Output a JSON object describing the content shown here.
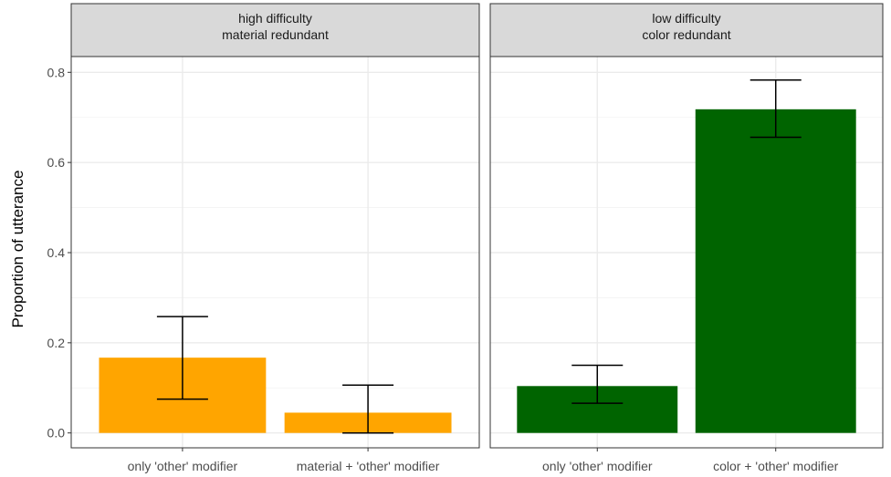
{
  "chart_data": {
    "type": "bar",
    "ylabel": "Proportion of utterance",
    "xlabel": "",
    "ylim": [
      -0.033,
      0.835
    ],
    "y_ticks": [
      "0.0",
      "0.2",
      "0.4",
      "0.6",
      "0.8"
    ],
    "grid": true,
    "legend": "none",
    "panels": [
      {
        "strip": [
          "high difficulty",
          "material redundant"
        ],
        "categories": [
          "only 'other' modifier",
          "material + 'other' modifier"
        ],
        "values": [
          0.167,
          0.045
        ],
        "error_low": [
          0.075,
          0.0
        ],
        "error_high": [
          0.258,
          0.106
        ],
        "color": "#FFA500"
      },
      {
        "strip": [
          "low difficulty",
          "color redundant"
        ],
        "categories": [
          "only 'other' modifier",
          "color + 'other' modifier"
        ],
        "values": [
          0.104,
          0.718
        ],
        "error_low": [
          0.066,
          0.656
        ],
        "error_high": [
          0.15,
          0.783
        ],
        "color": "#006400"
      }
    ]
  }
}
